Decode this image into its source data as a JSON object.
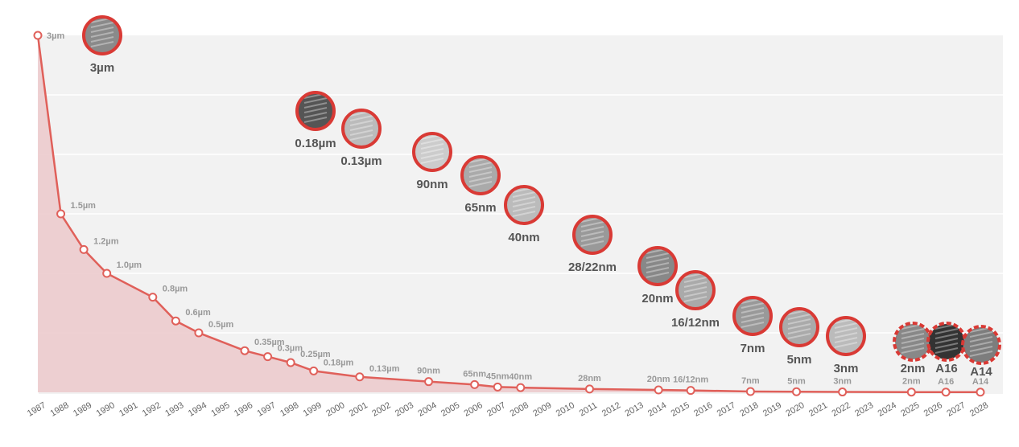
{
  "chart_data": {
    "type": "area",
    "title": "",
    "xlabel": "",
    "ylabel": "",
    "x_ticks": [
      "1987",
      "1988",
      "1989",
      "1990",
      "1991",
      "1992",
      "1993",
      "1994",
      "1995",
      "1996",
      "1997",
      "1998",
      "1999",
      "2000",
      "2001",
      "2002",
      "2003",
      "2004",
      "2005",
      "2006",
      "2007",
      "2008",
      "2009",
      "2010",
      "2011",
      "2012",
      "2013",
      "2014",
      "2015",
      "2016",
      "2017",
      "2018",
      "2019",
      "2020",
      "2021",
      "2022",
      "2023",
      "2024",
      "2025",
      "2026",
      "2027",
      "2028"
    ],
    "xlim": [
      1987,
      2028
    ],
    "ylim": [
      0,
      3
    ],
    "y_unit": "µm",
    "grid": true,
    "line_color": "#e0605a",
    "fill_color": "#ecc9cb",
    "points": [
      {
        "x": 1987,
        "y": 3,
        "label": "3µm"
      },
      {
        "x": 1988,
        "y": 1.5,
        "label": "1.5µm"
      },
      {
        "x": 1989,
        "y": 1.2,
        "label": "1.2µm"
      },
      {
        "x": 1990,
        "y": 1.0,
        "label": "1.0µm"
      },
      {
        "x": 1992,
        "y": 0.8,
        "label": "0.8µm"
      },
      {
        "x": 1993,
        "y": 0.6,
        "label": "0.6µm"
      },
      {
        "x": 1994,
        "y": 0.5,
        "label": "0.5µm"
      },
      {
        "x": 1996,
        "y": 0.35,
        "label": "0.35µm"
      },
      {
        "x": 1997,
        "y": 0.3,
        "label": "0.3µm"
      },
      {
        "x": 1998,
        "y": 0.25,
        "label": "0.25µm"
      },
      {
        "x": 1999,
        "y": 0.18,
        "label": "0.18µm"
      },
      {
        "x": 2001,
        "y": 0.13,
        "label": "0.13µm"
      },
      {
        "x": 2004,
        "y": 0.09,
        "label": "90nm"
      },
      {
        "x": 2006,
        "y": 0.065,
        "label": "65nm"
      },
      {
        "x": 2007,
        "y": 0.045,
        "label": "45nm"
      },
      {
        "x": 2008,
        "y": 0.04,
        "label": "40nm"
      },
      {
        "x": 2011,
        "y": 0.028,
        "label": "28nm"
      },
      {
        "x": 2014,
        "y": 0.02,
        "label": "20nm"
      },
      {
        "x": 2015.4,
        "y": 0.016,
        "label": "16/12nm"
      },
      {
        "x": 2018,
        "y": 0.007,
        "label": "7nm"
      },
      {
        "x": 2020,
        "y": 0.005,
        "label": "5nm"
      },
      {
        "x": 2022,
        "y": 0.003,
        "label": "3nm"
      },
      {
        "x": 2025,
        "y": 0.002,
        "label": "2nm"
      },
      {
        "x": 2026.5,
        "y": 0.0016,
        "label": "A16"
      },
      {
        "x": 2028,
        "y": 0.0014,
        "label": "A14"
      }
    ],
    "image_bubbles": [
      {
        "label": "3µm",
        "style": "solid"
      },
      {
        "label": "0.18µm",
        "style": "solid"
      },
      {
        "label": "0.13µm",
        "style": "solid"
      },
      {
        "label": "90nm",
        "style": "solid"
      },
      {
        "label": "65nm",
        "style": "solid"
      },
      {
        "label": "40nm",
        "style": "solid"
      },
      {
        "label": "28/22nm",
        "style": "solid"
      },
      {
        "label": "20nm",
        "style": "solid"
      },
      {
        "label": "16/12nm",
        "style": "solid"
      },
      {
        "label": "7nm",
        "style": "solid"
      },
      {
        "label": "5nm",
        "style": "solid"
      },
      {
        "label": "3nm",
        "style": "solid"
      },
      {
        "label": "2nm",
        "style": "dashed"
      },
      {
        "label": "A16",
        "style": "dashed"
      },
      {
        "label": "A14",
        "style": "dashed"
      }
    ],
    "bubble_color": "#d93a35"
  }
}
